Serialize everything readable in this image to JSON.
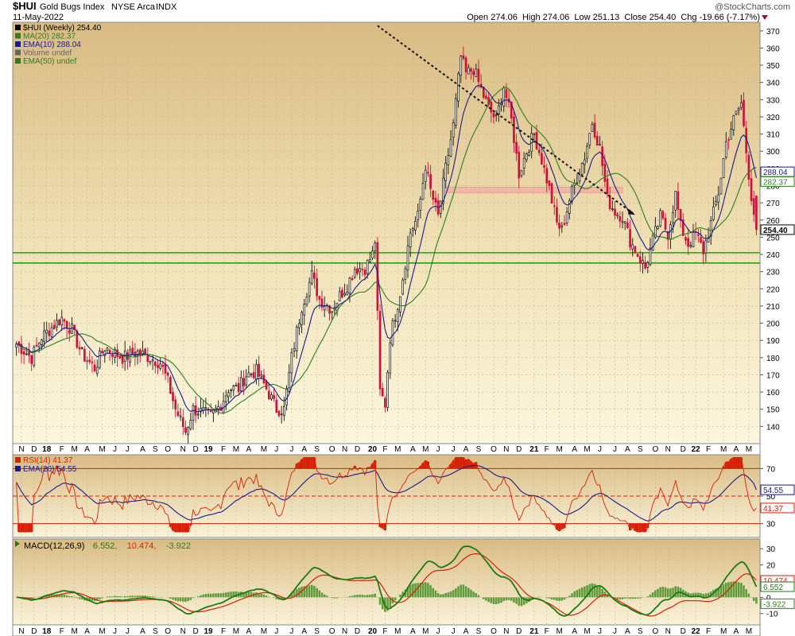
{
  "header": {
    "symbol": "$HUI",
    "name": "Gold Bugs Index",
    "exchange": "NYSE Arca",
    "type": "INDX",
    "date": "11-May-2022",
    "watermark": "@StockCharts.com",
    "ohlc": "Open 274.06  High 274.06  Low 251.13  Close 254.40  Chg -19.66 (-7.17%)"
  },
  "chart_data": [
    {
      "type": "candlestick",
      "panel": "price",
      "legend": [
        {
          "text": "$HUI (Weekly) 254.40",
          "color": "#000000"
        },
        {
          "text": "MA(20) 282.37",
          "color": "#2e7d20"
        },
        {
          "text": "EMA(10) 288.04",
          "color": "#1a1a8c"
        },
        {
          "text": "Volume undef",
          "color": "#666666"
        },
        {
          "text": "EMA(50) undef",
          "color": "#2e7d20"
        }
      ],
      "ylim": [
        130,
        375
      ],
      "y_ticks": [
        140,
        150,
        160,
        170,
        180,
        190,
        200,
        210,
        220,
        230,
        240,
        250,
        260,
        270,
        280,
        290,
        300,
        310,
        320,
        330,
        340,
        350,
        360,
        370
      ],
      "x_labels": [
        "N",
        "D",
        "18",
        "F",
        "M",
        "A",
        "M",
        "J",
        "J",
        "A",
        "S",
        "O",
        "N",
        "D",
        "19",
        "F",
        "M",
        "A",
        "M",
        "J",
        "J",
        "A",
        "S",
        "O",
        "N",
        "D",
        "20",
        "F",
        "M",
        "A",
        "M",
        "J",
        "J",
        "A",
        "S",
        "O",
        "N",
        "D",
        "21",
        "F",
        "M",
        "A",
        "M",
        "J",
        "J",
        "A",
        "S",
        "O",
        "N",
        "D",
        "22",
        "F",
        "M",
        "A",
        "M"
      ],
      "last_price_label": "254.40",
      "value_tags": [
        {
          "text": "288.04",
          "value": 288.04,
          "color": "#1a1a8c"
        },
        {
          "text": "282.37",
          "value": 282.37,
          "color": "#2e7d20"
        }
      ],
      "horizontal_lines": [
        {
          "value": 241,
          "color": "#2e9a1c"
        },
        {
          "value": 235,
          "color": "#2e9a1c"
        }
      ],
      "resistance_zone": {
        "from_week": 170,
        "to_week": 240,
        "low": 276,
        "high": 279
      },
      "trendline": {
        "start": {
          "week": 143,
          "value": 373
        },
        "end": {
          "week": 245,
          "value": 263
        }
      },
      "anchors": [
        {
          "w": 0,
          "v": 188
        },
        {
          "w": 6,
          "v": 180
        },
        {
          "w": 10,
          "v": 192
        },
        {
          "w": 18,
          "v": 203
        },
        {
          "w": 22,
          "v": 196
        },
        {
          "w": 26,
          "v": 182
        },
        {
          "w": 31,
          "v": 174
        },
        {
          "w": 35,
          "v": 186
        },
        {
          "w": 42,
          "v": 180
        },
        {
          "w": 48,
          "v": 183
        },
        {
          "w": 53,
          "v": 180
        },
        {
          "w": 57,
          "v": 177
        },
        {
          "w": 60,
          "v": 166
        },
        {
          "w": 63,
          "v": 150
        },
        {
          "w": 67,
          "v": 137
        },
        {
          "w": 70,
          "v": 150
        },
        {
          "w": 74,
          "v": 148
        },
        {
          "w": 77,
          "v": 146
        },
        {
          "w": 81,
          "v": 153
        },
        {
          "w": 84,
          "v": 162
        },
        {
          "w": 88,
          "v": 162
        },
        {
          "w": 91,
          "v": 170
        },
        {
          "w": 95,
          "v": 172
        },
        {
          "w": 99,
          "v": 162
        },
        {
          "w": 103,
          "v": 150
        },
        {
          "w": 106,
          "v": 150
        },
        {
          "w": 109,
          "v": 180
        },
        {
          "w": 113,
          "v": 210
        },
        {
          "w": 117,
          "v": 228
        },
        {
          "w": 120,
          "v": 214
        },
        {
          "w": 125,
          "v": 208
        },
        {
          "w": 128,
          "v": 216
        },
        {
          "w": 131,
          "v": 222
        },
        {
          "w": 134,
          "v": 232
        },
        {
          "w": 138,
          "v": 232
        },
        {
          "w": 141,
          "v": 240
        },
        {
          "w": 142,
          "v": 248
        },
        {
          "w": 144,
          "v": 160
        },
        {
          "w": 146,
          "v": 153
        },
        {
          "w": 148,
          "v": 192
        },
        {
          "w": 152,
          "v": 218
        },
        {
          "w": 156,
          "v": 253
        },
        {
          "w": 159,
          "v": 262
        },
        {
          "w": 162,
          "v": 292
        },
        {
          "w": 164,
          "v": 277
        },
        {
          "w": 167,
          "v": 262
        },
        {
          "w": 170,
          "v": 290
        },
        {
          "w": 173,
          "v": 315
        },
        {
          "w": 176,
          "v": 355
        },
        {
          "w": 178,
          "v": 345
        },
        {
          "w": 181,
          "v": 348
        },
        {
          "w": 184,
          "v": 336
        },
        {
          "w": 187,
          "v": 325
        },
        {
          "w": 190,
          "v": 318
        },
        {
          "w": 193,
          "v": 338
        },
        {
          "w": 196,
          "v": 318
        },
        {
          "w": 199,
          "v": 287
        },
        {
          "w": 202,
          "v": 300
        },
        {
          "w": 205,
          "v": 310
        },
        {
          "w": 208,
          "v": 295
        },
        {
          "w": 211,
          "v": 278
        },
        {
          "w": 214,
          "v": 258
        },
        {
          "w": 216,
          "v": 254
        },
        {
          "w": 219,
          "v": 272
        },
        {
          "w": 222,
          "v": 285
        },
        {
          "w": 225,
          "v": 297
        },
        {
          "w": 228,
          "v": 317
        },
        {
          "w": 231,
          "v": 302
        },
        {
          "w": 234,
          "v": 272
        },
        {
          "w": 237,
          "v": 265
        },
        {
          "w": 240,
          "v": 262
        },
        {
          "w": 243,
          "v": 248
        },
        {
          "w": 246,
          "v": 240
        },
        {
          "w": 249,
          "v": 232
        },
        {
          "w": 252,
          "v": 248
        },
        {
          "w": 255,
          "v": 262
        },
        {
          "w": 258,
          "v": 252
        },
        {
          "w": 261,
          "v": 275
        },
        {
          "w": 263,
          "v": 256
        },
        {
          "w": 266,
          "v": 246
        },
        {
          "w": 269,
          "v": 252
        },
        {
          "w": 272,
          "v": 242
        },
        {
          "w": 275,
          "v": 258
        },
        {
          "w": 278,
          "v": 276
        },
        {
          "w": 281,
          "v": 305
        },
        {
          "w": 284,
          "v": 318
        },
        {
          "w": 287,
          "v": 328
        },
        {
          "w": 289,
          "v": 300
        },
        {
          "w": 291,
          "v": 274
        },
        {
          "w": 293,
          "v": 254.4
        }
      ],
      "close": 254.4,
      "ma20_last": 282.37,
      "ema10_last": 288.04
    },
    {
      "type": "line",
      "panel": "rsi",
      "legend": [
        {
          "text": "RSI(14) 41.37",
          "color": "#d81e05"
        },
        {
          "text": "EMA(20) 54.55",
          "color": "#1a1a8c"
        }
      ],
      "ylim": [
        20,
        80
      ],
      "y_ticks": [
        30,
        50,
        70
      ],
      "overbought": 70,
      "oversold": 30,
      "midline": 50,
      "series": [
        {
          "name": "RSI(14)",
          "last": 41.37,
          "color": "#d81e05"
        },
        {
          "name": "EMA(20)",
          "last": 54.55,
          "color": "#1a1a8c"
        }
      ],
      "value_tags": [
        {
          "text": "54.55",
          "value": 54.55,
          "color": "#1a1a8c"
        },
        {
          "text": "41.37",
          "value": 41.37,
          "color": "#d81e05"
        }
      ]
    },
    {
      "type": "line+histogram",
      "panel": "macd",
      "legend": [
        {
          "text": "MACD(12,26,9)",
          "color": "#000000"
        },
        {
          "text": "6.552,",
          "color": "#1c7a12"
        },
        {
          "text": "10.474,",
          "color": "#d81e05"
        },
        {
          "text": "-3.922",
          "color": "#2e7d20"
        }
      ],
      "ylim": [
        -17,
        36
      ],
      "y_ticks": [
        -10,
        0,
        10,
        20,
        30
      ],
      "series": [
        {
          "name": "MACD",
          "last": 6.552,
          "color": "#1c7a12"
        },
        {
          "name": "Signal",
          "last": 10.474,
          "color": "#d81e05"
        },
        {
          "name": "Histogram",
          "last": -3.922,
          "color": "#2e7d20"
        }
      ],
      "value_tags": [
        {
          "text": "10.474",
          "value": 10.474,
          "color": "#d81e05"
        },
        {
          "text": "6.552",
          "value": 6.552,
          "color": "#1c7a12"
        },
        {
          "text": "-3.922",
          "value": -3.922,
          "color": "#2e7d20"
        }
      ],
      "x_labels": [
        "N",
        "D",
        "18",
        "F",
        "M",
        "A",
        "M",
        "J",
        "J",
        "A",
        "S",
        "O",
        "N",
        "D",
        "19",
        "F",
        "M",
        "A",
        "M",
        "J",
        "J",
        "A",
        "S",
        "O",
        "N",
        "D",
        "20",
        "F",
        "M",
        "A",
        "M",
        "J",
        "J",
        "A",
        "S",
        "O",
        "N",
        "D",
        "21",
        "F",
        "M",
        "A",
        "M",
        "J",
        "J",
        "A",
        "S",
        "O",
        "N",
        "D",
        "22",
        "F",
        "M",
        "A",
        "M"
      ]
    }
  ]
}
